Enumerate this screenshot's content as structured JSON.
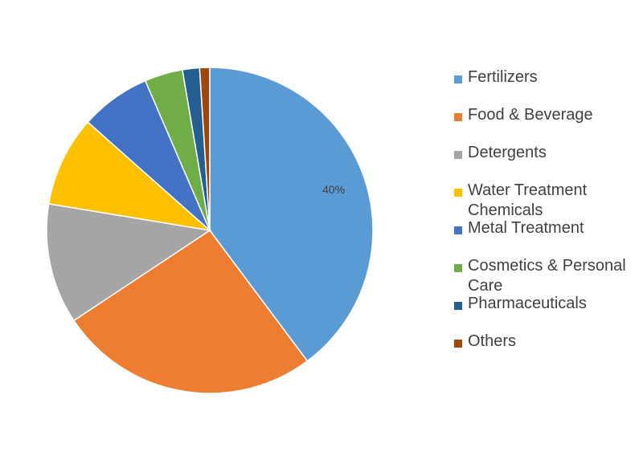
{
  "chart_data": {
    "type": "pie",
    "categories": [
      "Fertilizers",
      "Food & Beverage",
      "Detergents",
      "Water Treatment Chemicals",
      "Metal Treatment",
      "Cosmetics & Personal Care",
      "Pharmaceuticals",
      "Others"
    ],
    "values": [
      40,
      26,
      12,
      9,
      7,
      3.8,
      1.7,
      1
    ],
    "colors": [
      "#5B9BD5",
      "#ED7D31",
      "#A5A5A5",
      "#FFC000",
      "#4472C4",
      "#70AD47",
      "#255E91",
      "#9E480E"
    ],
    "data_labels": [
      "40%",
      "",
      "",
      "",
      "",
      "",
      "",
      ""
    ],
    "legend": {
      "position": "right",
      "entries": [
        "Fertilizers",
        "Food & Beverage",
        "Detergents",
        "Water Treatment Chemicals",
        "Metal Treatment",
        "Cosmetics & Personal Care",
        "Pharmaceuticals",
        "Others"
      ]
    },
    "start_angle": "12 o'clock",
    "direction": "clockwise"
  }
}
